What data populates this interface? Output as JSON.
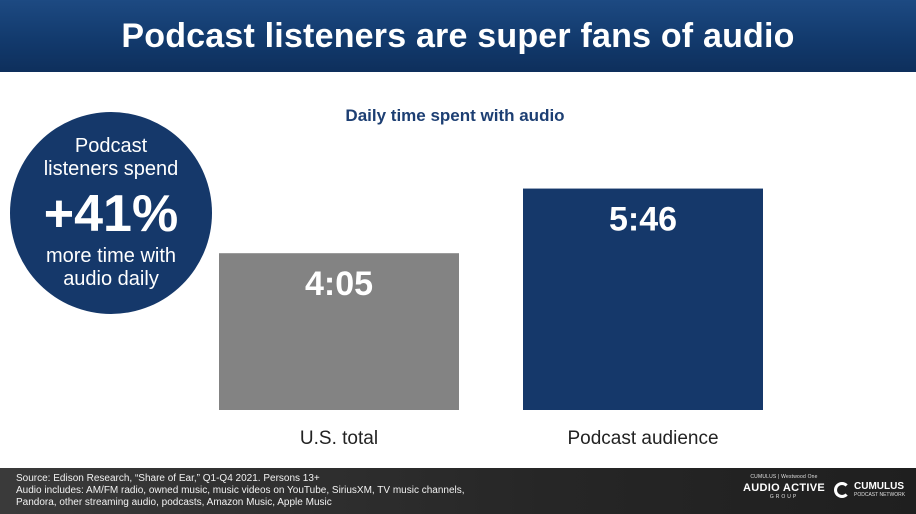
{
  "header": {
    "title": "Podcast listeners are super fans of audio"
  },
  "badge": {
    "line1": "Podcast",
    "line2": "listeners spend",
    "stat": "+41%",
    "line3": "more time with",
    "line4": "audio daily"
  },
  "chart_data": {
    "type": "bar",
    "title": "Daily time spent with audio",
    "categories": [
      "U.S. total",
      "Podcast audience"
    ],
    "values": [
      245,
      346
    ],
    "value_labels": [
      "4:05",
      "5:46"
    ],
    "units": "minutes",
    "ylim": [
      0,
      375
    ],
    "grid": false,
    "legend": "none",
    "colors": [
      "#838383",
      "#15386a"
    ]
  },
  "footer": {
    "source_lines": [
      "Source: Edison Research, “Share of Ear,” Q1-Q4 2021. Persons 13+",
      "Audio includes: AM/FM radio, owned music, music videos on YouTube, SiriusXM, TV music channels,",
      "Pandora, other streaming audio, podcasts, Amazon Music, Apple Music"
    ],
    "logo_group_top": "CUMULUS | Westwood One",
    "logo_group_name": "AUDIO ACTIVE",
    "logo_group_sub": "GROUP",
    "logo_network_name": "CUMULUS",
    "logo_network_sub": "PODCAST NETWORK"
  },
  "colors": {
    "navy": "#15386a",
    "header": "#123a6d",
    "gray_bar": "#838383"
  }
}
